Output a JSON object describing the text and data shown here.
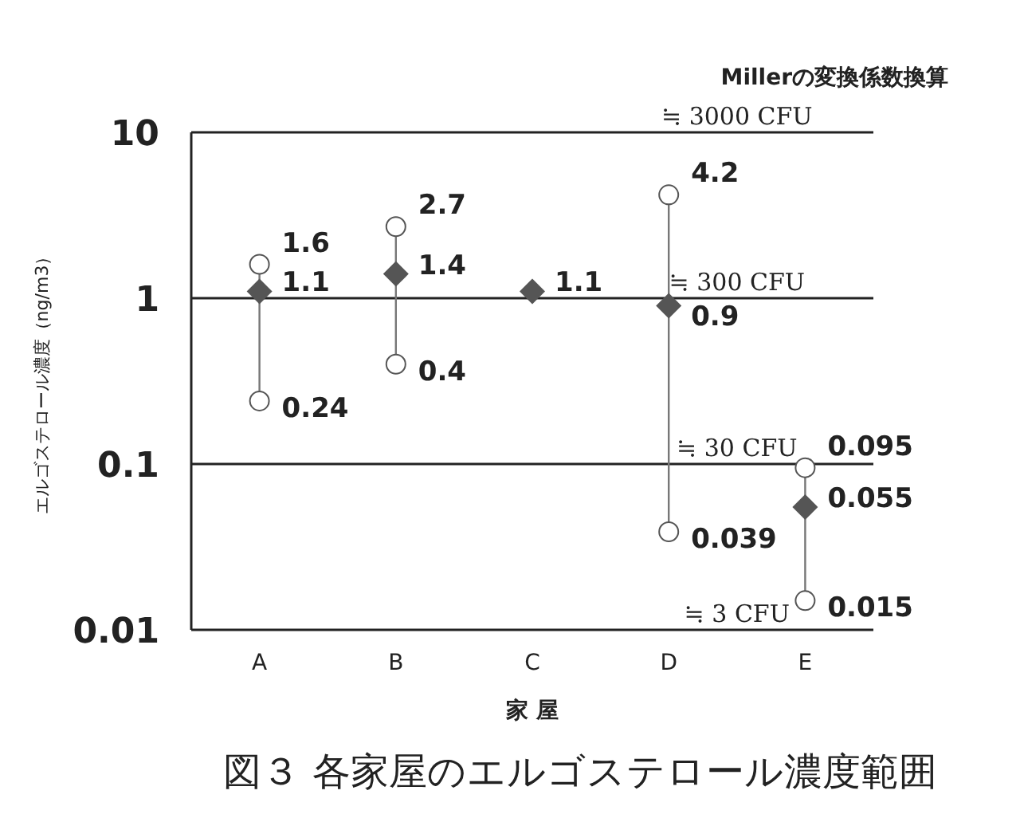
{
  "chart_data": {
    "type": "scatter",
    "title": "図３ 各家屋のエルゴステロール濃度範囲",
    "xlabel": "家 屋",
    "ylabel": "エルゴステロール濃度（ng/m3）",
    "annotations": [
      "Millerの変換係数換算",
      "≒ 3000 CFU",
      "≒ 300 CFU",
      "≒ 30 CFU",
      "≒ 3 CFU"
    ],
    "categories": [
      "A",
      "B",
      "C",
      "D",
      "E"
    ],
    "series": [
      {
        "type": "line",
        "color": "#777777",
        "marker": "circle",
        "x": [
          "A",
          "A"
        ],
        "values": [
          0.24,
          1.6
        ]
      },
      {
        "type": "line",
        "color": "#777777",
        "marker": "circle",
        "x": [
          "B",
          "B"
        ],
        "values": [
          0.4,
          2.7
        ]
      },
      {
        "type": "line",
        "color": "#777777",
        "marker": "circle",
        "x": [
          "D",
          "D"
        ],
        "values": [
          0.039,
          4.2
        ]
      },
      {
        "type": "line",
        "color": "#777777",
        "marker": "circle",
        "x": [
          "E",
          "E"
        ],
        "values": [
          0.015,
          0.095
        ]
      },
      {
        "type": "scatter",
        "color": "#555555",
        "marker": "diamond",
        "values": [
          1.1,
          1.4,
          1.1,
          0.9,
          0.055
        ]
      }
    ],
    "log": true,
    "ylim": [
      0.01,
      10
    ],
    "yticks": [
      0.01,
      0.1,
      1,
      10
    ],
    "grid": "y",
    "data_labels": true
  }
}
